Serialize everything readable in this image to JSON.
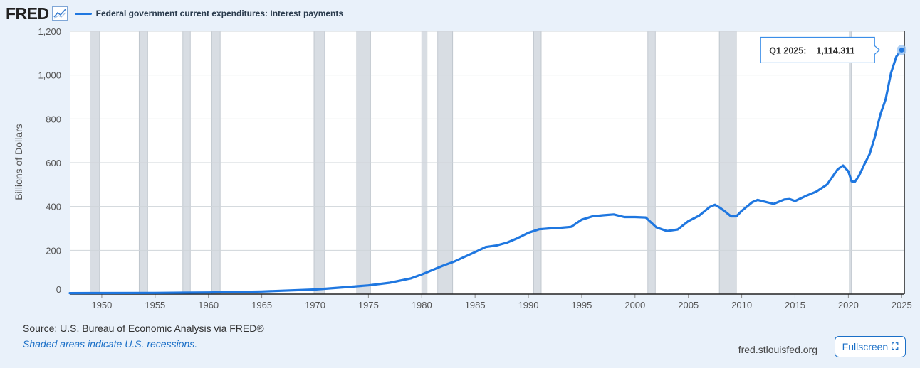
{
  "header": {
    "logo": "FRED",
    "logo_icon": "chart-line-icon",
    "series_label": "Federal government current expenditures: Interest payments"
  },
  "chart_data": {
    "type": "line",
    "title": "Federal government current expenditures: Interest payments",
    "ylabel": "Billions of Dollars",
    "xlabel": "",
    "xlim": [
      1947,
      2025.25
    ],
    "ylim": [
      0,
      1200
    ],
    "yticks": [
      0,
      200,
      400,
      600,
      800,
      1000,
      1200
    ],
    "ytick_labels": [
      "0",
      "200",
      "400",
      "600",
      "800",
      "1,000",
      "1,200"
    ],
    "xticks": [
      1950,
      1955,
      1960,
      1965,
      1970,
      1975,
      1980,
      1985,
      1990,
      1995,
      2000,
      2005,
      2010,
      2015,
      2020,
      2025
    ],
    "grid": true,
    "line_color": "#1f77e0",
    "recession_color": "#d8dde3",
    "recessions": [
      [
        1948.9,
        1949.8
      ],
      [
        1953.5,
        1954.3
      ],
      [
        1957.6,
        1958.3
      ],
      [
        1960.3,
        1961.1
      ],
      [
        1969.9,
        1970.9
      ],
      [
        1973.9,
        1975.2
      ],
      [
        1980.0,
        1980.5
      ],
      [
        1981.5,
        1982.9
      ],
      [
        1990.5,
        1991.2
      ],
      [
        2001.2,
        2001.9
      ],
      [
        2007.9,
        2009.5
      ],
      [
        2020.1,
        2020.3
      ]
    ],
    "series": [
      {
        "name": "Federal government current expenditures: Interest payments",
        "x": [
          1947,
          1950,
          1955,
          1960,
          1965,
          1970,
          1973,
          1975,
          1977,
          1979,
          1980,
          1981,
          1982,
          1983,
          1984,
          1985,
          1986,
          1987,
          1988,
          1989,
          1990,
          1991,
          1992,
          1993,
          1994,
          1995,
          1996,
          1997,
          1998,
          1999,
          2000,
          2001,
          2002,
          2003,
          2004,
          2005,
          2006,
          2007,
          2007.5,
          2008,
          2008.5,
          2009,
          2009.5,
          2010,
          2011,
          2011.5,
          2012,
          2013,
          2014,
          2014.5,
          2015,
          2016,
          2017,
          2018,
          2019,
          2019.5,
          2020,
          2020.3,
          2020.6,
          2021,
          2021.5,
          2022,
          2022.5,
          2023,
          2023.5,
          2024,
          2024.5,
          2025
        ],
        "y": [
          4.5,
          4.8,
          5.5,
          7.5,
          12,
          21,
          32,
          40,
          52,
          72,
          90,
          110,
          130,
          148,
          170,
          192,
          215,
          222,
          235,
          256,
          280,
          296,
          300,
          303,
          307,
          340,
          355,
          360,
          364,
          352,
          352,
          350,
          305,
          288,
          295,
          333,
          358,
          398,
          408,
          393,
          375,
          355,
          355,
          380,
          420,
          430,
          424,
          412,
          432,
          434,
          425,
          448,
          468,
          500,
          570,
          587,
          560,
          515,
          512,
          540,
          592,
          640,
          720,
          820,
          890,
          1010,
          1085,
          1114.311
        ]
      }
    ],
    "tooltip": {
      "label": "Q1 2025:",
      "value": "1,114.311"
    }
  },
  "footer": {
    "source": "Source: U.S. Bureau of Economic Analysis via FRED®",
    "recession_note": "Shaded areas indicate U.S. recessions.",
    "site": "fred.stlouisfed.org",
    "fullscreen_label": "Fullscreen",
    "fullscreen_icon": "expand-icon"
  }
}
